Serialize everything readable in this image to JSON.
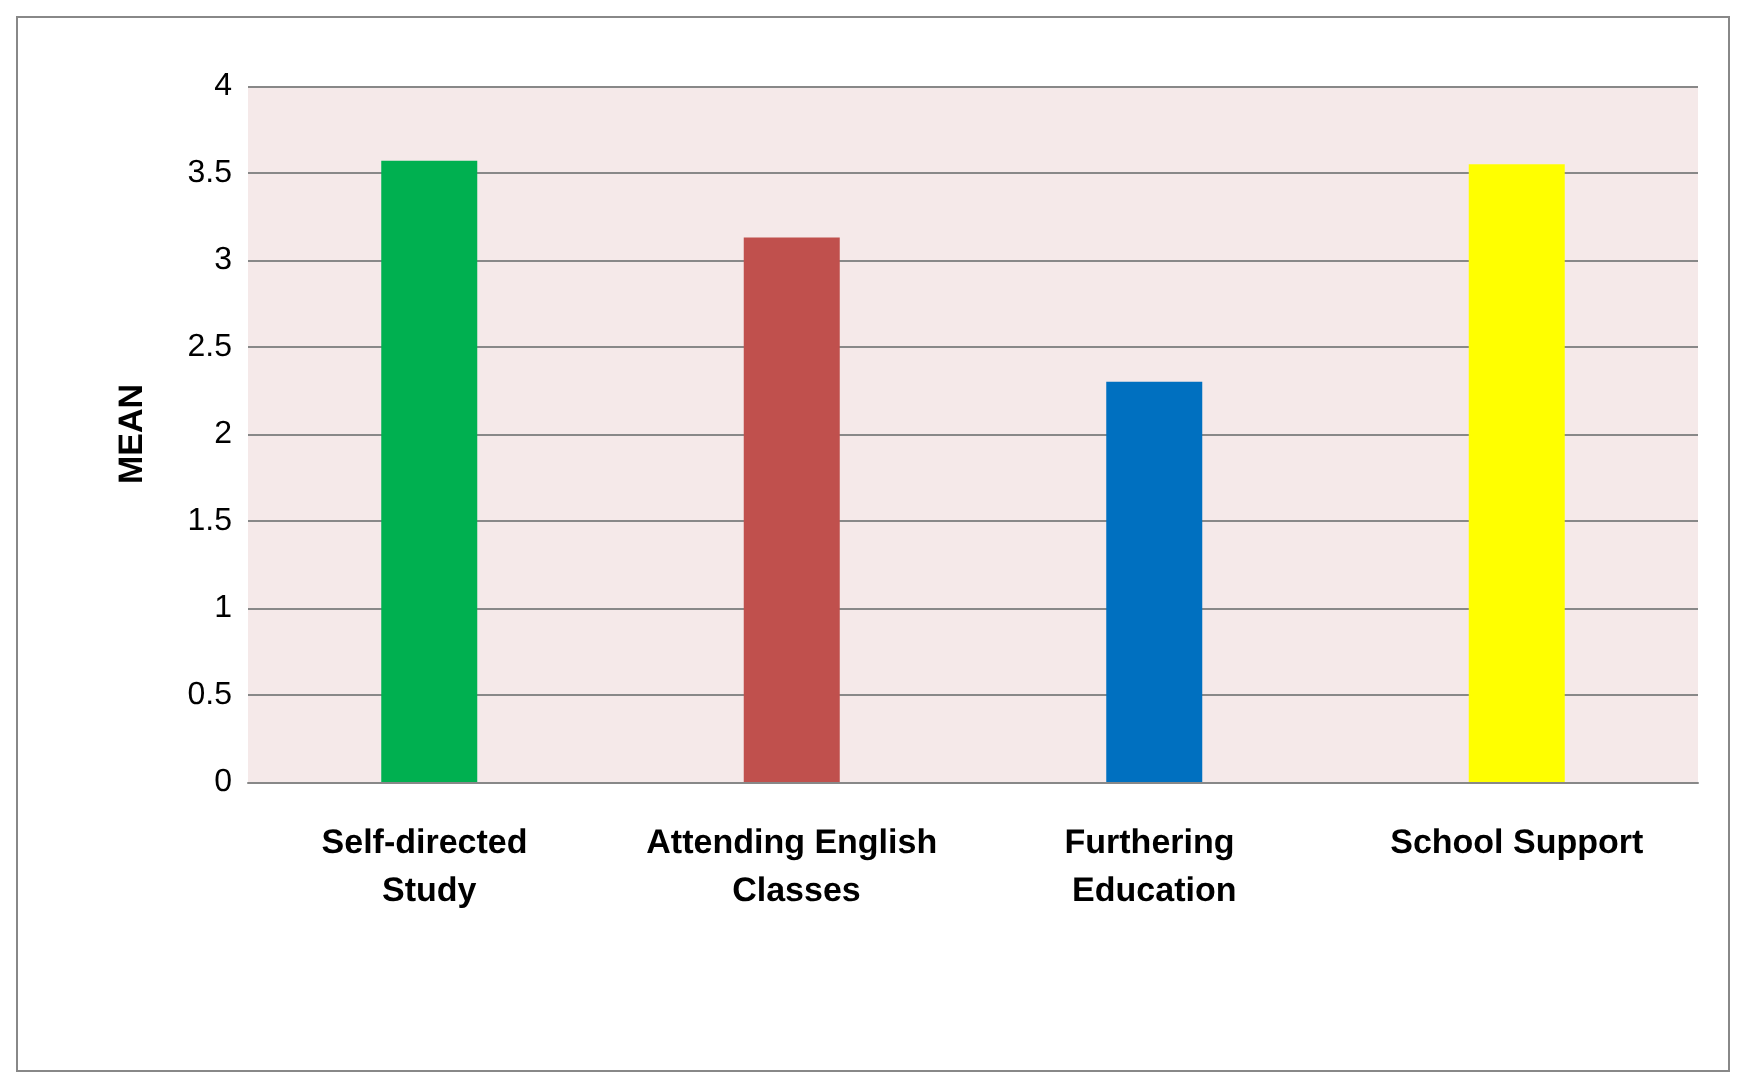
{
  "chart_data": {
    "type": "bar",
    "ylabel": "MEAN",
    "categories": [
      "Self-directed Study",
      "Attending English Classes",
      "Furthering Education",
      "School Support"
    ],
    "values": [
      3.57,
      3.13,
      2.3,
      3.55
    ],
    "colors": [
      "#00b050",
      "#c0504d",
      "#0070c0",
      "#ffff00"
    ],
    "ylim": [
      0,
      4
    ],
    "yticks": [
      0,
      0.5,
      1,
      1.5,
      2,
      2.5,
      3,
      3.5,
      4
    ],
    "grid": "y"
  }
}
